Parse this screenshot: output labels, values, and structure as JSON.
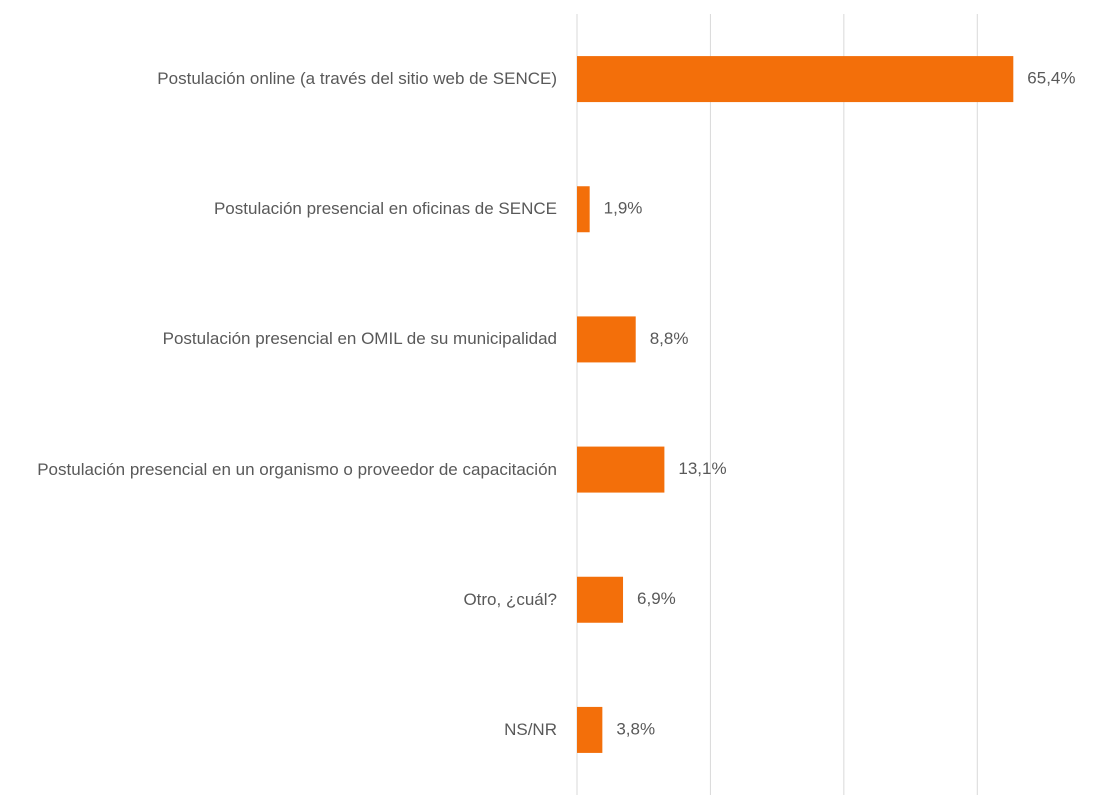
{
  "chart_data": {
    "type": "bar",
    "orientation": "horizontal",
    "categories": [
      "Postulación online (a través del sitio web de SENCE)",
      "Postulación presencial en oficinas de SENCE",
      "Postulación presencial en OMIL de su municipalidad",
      "Postulación presencial en un organismo o proveedor de capacitación",
      "Otro, ¿cuál?",
      "NS/NR"
    ],
    "values": [
      65.4,
      1.9,
      8.8,
      13.1,
      6.9,
      3.8
    ],
    "value_labels": [
      "65,4%",
      "1,9%",
      "8,8%",
      "13,1%",
      "6,9%",
      "3,8%"
    ],
    "color": "#f36f0a",
    "xlim": [
      0,
      70
    ],
    "xticks": [
      0,
      20,
      40,
      60
    ],
    "grid": true
  }
}
